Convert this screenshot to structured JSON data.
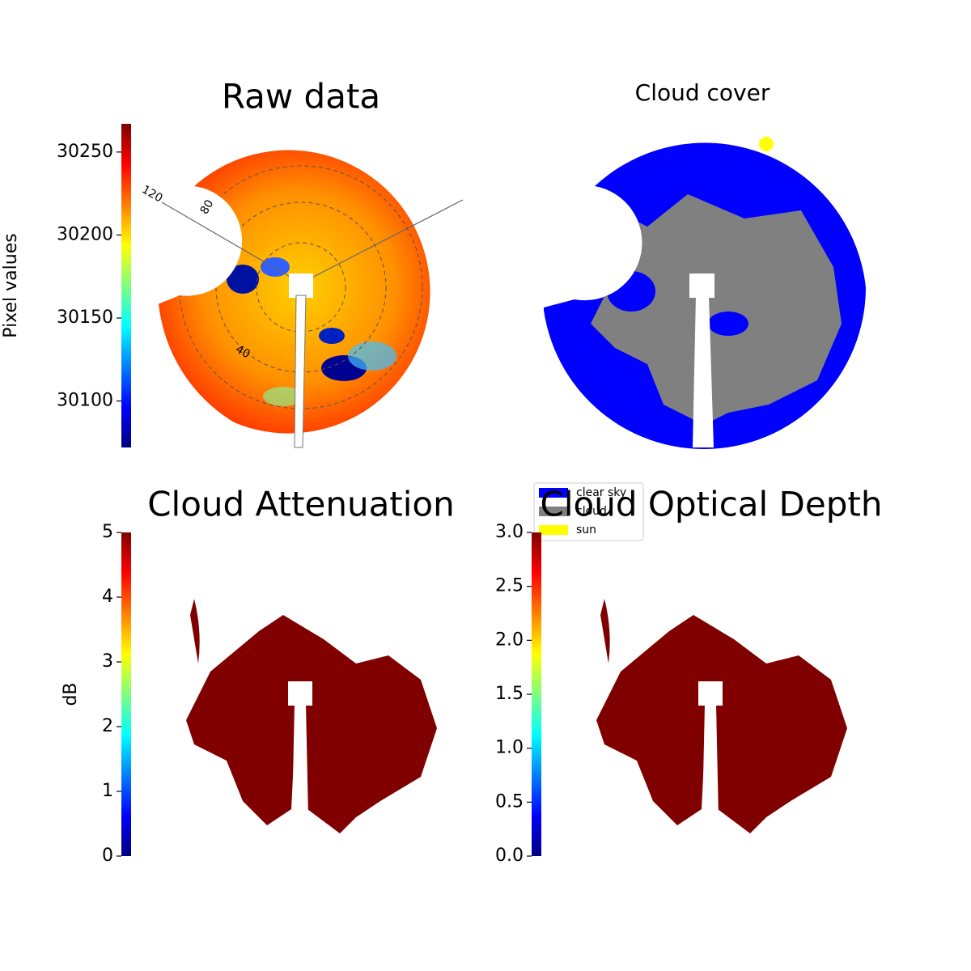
{
  "chart_data": [
    {
      "type": "image",
      "title": "Raw data",
      "polar_labels": [
        "120",
        "80",
        "40"
      ],
      "colorbar": {
        "label": "Pixel values",
        "colormap": "jet",
        "ylim": [
          30072,
          30267
        ],
        "yticks": [
          30100,
          30150,
          30200,
          30250
        ]
      }
    },
    {
      "type": "image",
      "title": "Cloud cover",
      "legend": {
        "entries": [
          {
            "name": "clear sky",
            "color": "#0000ff"
          },
          {
            "name": "cloud",
            "color": "#808080"
          },
          {
            "name": "sun",
            "color": "#ffff00"
          }
        ]
      }
    },
    {
      "type": "image",
      "title": "Cloud Attenuation",
      "colorbar": {
        "label": "dB",
        "colormap": "jet",
        "ylim": [
          0,
          5
        ],
        "yticks": [
          0,
          1,
          2,
          3,
          4,
          5
        ]
      }
    },
    {
      "type": "image",
      "title": "Cloud Optical Depth",
      "colorbar": {
        "colormap": "jet",
        "ylim": [
          0,
          3
        ],
        "yticks": [
          {
            "value": 0,
            "label": "0.0"
          },
          {
            "value": 0.5,
            "label": "0.5"
          },
          {
            "value": 1,
            "label": "1.0"
          },
          {
            "value": 1.5,
            "label": "1.5"
          },
          {
            "value": 2,
            "label": "2.0"
          },
          {
            "value": 2.5,
            "label": "2.5"
          },
          {
            "value": 3,
            "label": "3.0"
          }
        ]
      }
    }
  ]
}
